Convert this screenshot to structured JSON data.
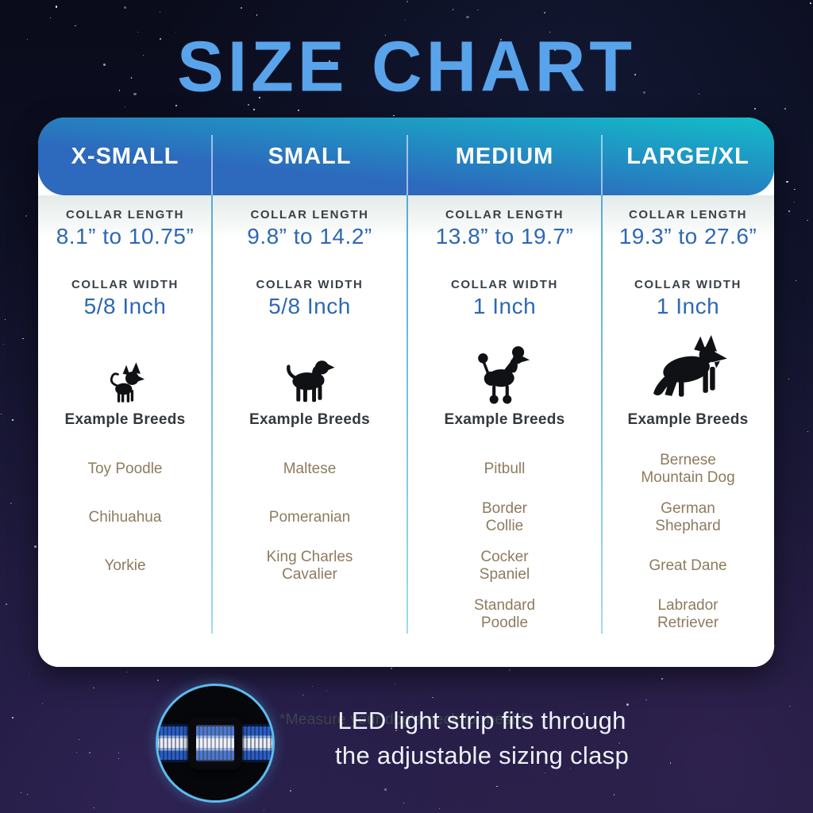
{
  "title": "SIZE CHART",
  "columns": [
    {
      "name": "X-SMALL",
      "collar_length_label": "COLLAR LENGTH",
      "collar_length": "8.1” to 10.75”",
      "collar_width_label": "COLLAR WIDTH",
      "collar_width": "5/8 Inch",
      "dog_icon": "chihuahua-silhouette",
      "example_breeds_label": "Example Breeds",
      "breeds": [
        "Toy Poodle",
        "Chihuahua",
        "Yorkie"
      ]
    },
    {
      "name": "SMALL",
      "collar_length_label": "COLLAR LENGTH",
      "collar_length": "9.8” to 14.2”",
      "collar_width_label": "COLLAR WIDTH",
      "collar_width": "5/8 Inch",
      "dog_icon": "cavalier-spaniel-silhouette",
      "example_breeds_label": "Example Breeds",
      "breeds": [
        "Maltese",
        "Pomeranian",
        "King Charles\nCavalier"
      ]
    },
    {
      "name": "MEDIUM",
      "collar_length_label": "COLLAR LENGTH",
      "collar_length": "13.8” to 19.7”",
      "collar_width_label": "COLLAR WIDTH",
      "collar_width": "1 Inch",
      "dog_icon": "poodle-silhouette",
      "example_breeds_label": "Example Breeds",
      "breeds": [
        "Pitbull",
        "Border\nCollie",
        "Cocker\nSpaniel",
        "Standard\nPoodle"
      ]
    },
    {
      "name": "LARGE/XL",
      "collar_length_label": "COLLAR LENGTH",
      "collar_length": "19.3” to 27.6”",
      "collar_width_label": "COLLAR WIDTH",
      "collar_width": "1 Inch",
      "dog_icon": "german-shepherd-silhouette",
      "example_breeds_label": "Example Breeds",
      "breeds": [
        "Bernese\nMountain Dog",
        "German\nShephard",
        "Great Dane",
        "Labrador\nRetriever"
      ]
    }
  ],
  "footnote": "*Measure your dog's neck for best fit",
  "bottom_caption": {
    "line1": "LED light strip fits through",
    "line2": "the adjustable sizing clasp"
  },
  "colors": {
    "title_blue": "#58a3ea",
    "header_gradient_start": "#2d69bd",
    "header_gradient_end": "#14b8c8",
    "value_blue": "#2e68b2",
    "breed_tan": "#8d7b5e",
    "divider_blue": "#9fdaec",
    "photo_ring_blue": "#5cbcec"
  }
}
